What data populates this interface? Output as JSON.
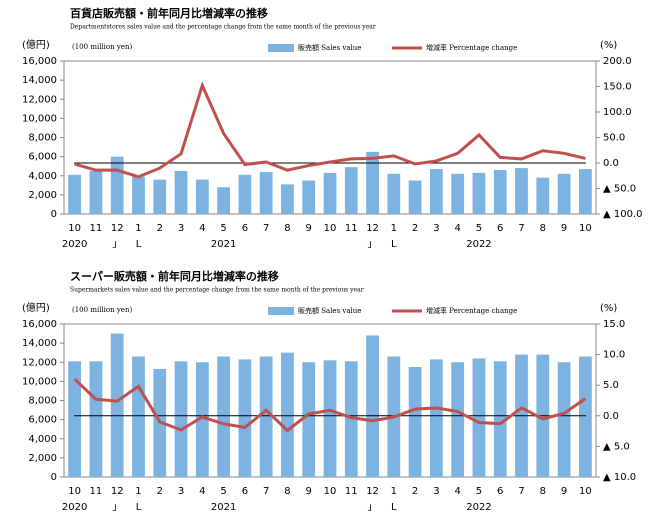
{
  "chart_data": [
    {
      "type": "bar-line",
      "title": "百貨店販売額・前年同月比増減率の推移",
      "subtitle": "Departmentstores sales value and the percentage change from the same month of the previous year",
      "ylabel": "(億円)",
      "ylabel_sub": "(100 million yen)",
      "y2label": "(%)",
      "categories": [
        "10",
        "11",
        "12",
        "1",
        "2",
        "3",
        "4",
        "5",
        "6",
        "7",
        "8",
        "9",
        "10",
        "11",
        "12",
        "1",
        "2",
        "3",
        "4",
        "5",
        "6",
        "7",
        "8",
        "9",
        "10"
      ],
      "year_labels": [
        "2020",
        null,
        "」",
        "L",
        null,
        null,
        null,
        "2021",
        null,
        null,
        null,
        null,
        null,
        null,
        "」",
        "L",
        null,
        null,
        null,
        "2022",
        null,
        null,
        null,
        null,
        null
      ],
      "series": [
        {
          "name": "販売額 Sales value",
          "kind": "bar",
          "color": "#7db3e0",
          "values": [
            4100,
            4500,
            6000,
            3900,
            3600,
            4500,
            3600,
            2800,
            4100,
            4400,
            3100,
            3500,
            4300,
            4900,
            6500,
            4200,
            3500,
            4700,
            4200,
            4300,
            4600,
            4800,
            3800,
            4200,
            4700
          ]
        },
        {
          "name": "増減率 Percentage change",
          "kind": "line",
          "axis": "y2",
          "color": "#c0504d",
          "values": [
            -2,
            -14,
            -14,
            -27,
            -10,
            18,
            152,
            58,
            -3,
            2,
            -14,
            -5,
            2,
            8,
            9,
            14,
            -2,
            4,
            19,
            55,
            11,
            8,
            24,
            19,
            9
          ]
        }
      ],
      "ylim": [
        0,
        16000
      ],
      "yticks": [
        0,
        {
          "value": 2000,
          "label": "2,000"
        },
        {
          "value": 4000,
          "label": "4,000"
        },
        {
          "value": 6000,
          "label": "6,000"
        },
        {
          "value": 8000,
          "label": "8,000"
        },
        {
          "value": 10000,
          "label": "10,000"
        },
        {
          "value": 12000,
          "label": "12,000"
        },
        {
          "value": 14000,
          "label": "14,000"
        },
        {
          "value": 16000,
          "label": "16,000"
        }
      ],
      "y2lim": [
        -100,
        200
      ],
      "y2ticks": [
        {
          "value": -100,
          "label": "▲ 100.0"
        },
        {
          "value": -50,
          "label": "▲ 50.0"
        },
        {
          "value": 0,
          "label": "0.0"
        },
        {
          "value": 50,
          "label": "50.0"
        },
        {
          "value": 100,
          "label": "100.0"
        },
        {
          "value": 150,
          "label": "150.0"
        },
        {
          "value": 200,
          "label": "200.0"
        }
      ]
    },
    {
      "type": "bar-line",
      "title": "スーパー販売額・前年同月比増減率の推移",
      "subtitle": "Supermarkets sales value and the percentage change from the same month of the previous year",
      "ylabel": "(億円)",
      "ylabel_sub": "(100 million yen)",
      "y2label": "(%)",
      "categories": [
        "10",
        "11",
        "12",
        "1",
        "2",
        "3",
        "4",
        "5",
        "6",
        "7",
        "8",
        "9",
        "10",
        "11",
        "12",
        "1",
        "2",
        "3",
        "4",
        "5",
        "6",
        "7",
        "8",
        "9",
        "10"
      ],
      "year_labels": [
        "2020",
        null,
        "」",
        "L",
        null,
        null,
        null,
        "2021",
        null,
        null,
        null,
        null,
        null,
        null,
        "」",
        "L",
        null,
        null,
        null,
        "2022",
        null,
        null,
        null,
        null,
        null
      ],
      "series": [
        {
          "name": "販売額 Sales value",
          "kind": "bar",
          "color": "#7db3e0",
          "values": [
            12100,
            12100,
            15000,
            12600,
            11300,
            12100,
            12000,
            12600,
            12300,
            12600,
            13000,
            12000,
            12200,
            12100,
            14800,
            12600,
            11500,
            12300,
            12000,
            12400,
            12100,
            12800,
            12800,
            12000,
            12600
          ]
        },
        {
          "name": "増減率 Percentage change",
          "kind": "line",
          "axis": "y2",
          "color": "#c0504d",
          "values": [
            6.0,
            2.7,
            2.4,
            4.8,
            -1.0,
            -2.3,
            -0.2,
            -1.3,
            -1.9,
            0.9,
            -2.4,
            0.3,
            0.9,
            -0.3,
            -0.8,
            -0.2,
            1.1,
            1.3,
            0.7,
            -1.1,
            -1.3,
            1.3,
            -0.5,
            0.4,
            2.8
          ]
        }
      ],
      "ylim": [
        0,
        16000
      ],
      "yticks": [
        0,
        {
          "value": 2000,
          "label": "2,000"
        },
        {
          "value": 4000,
          "label": "4,000"
        },
        {
          "value": 6000,
          "label": "6,000"
        },
        {
          "value": 8000,
          "label": "8,000"
        },
        {
          "value": 10000,
          "label": "10,000"
        },
        {
          "value": 12000,
          "label": "12,000"
        },
        {
          "value": 14000,
          "label": "14,000"
        },
        {
          "value": 16000,
          "label": "16,000"
        }
      ],
      "y2lim": [
        -10,
        15
      ],
      "y2ticks": [
        {
          "value": -10,
          "label": "▲ 10.0"
        },
        {
          "value": -5,
          "label": "▲ 5.0"
        },
        {
          "value": 0,
          "label": "0.0"
        },
        {
          "value": 5,
          "label": "5.0"
        },
        {
          "value": 10,
          "label": "10.0"
        },
        {
          "value": 15,
          "label": "15.0"
        }
      ]
    }
  ]
}
